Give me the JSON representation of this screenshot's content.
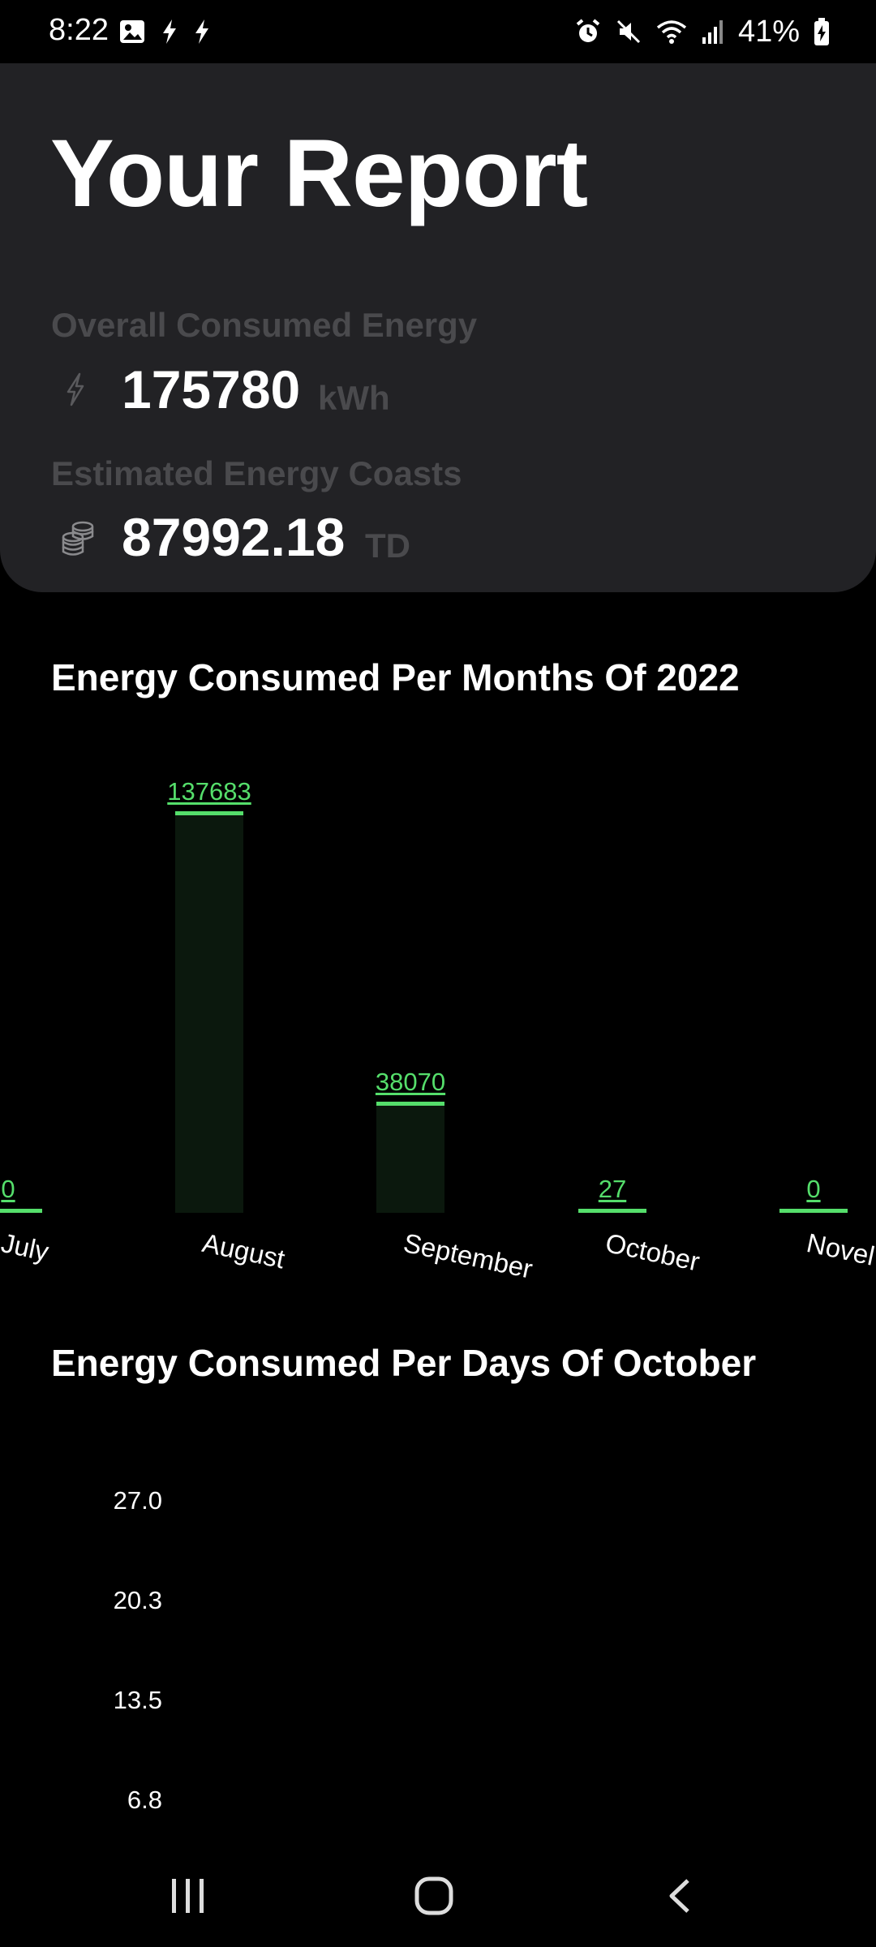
{
  "status_bar": {
    "time": "8:22",
    "battery": "41%"
  },
  "report": {
    "title": "Your Report",
    "energy": {
      "label": "Overall Consumed  Energy",
      "value": "175780",
      "unit": "kWh",
      "icon": "lightning-icon"
    },
    "cost": {
      "label": "Estimated Energy Coasts",
      "value": "87992.18",
      "unit": "TD",
      "icon": "coins-icon"
    }
  },
  "chart_data": [
    {
      "type": "bar",
      "title": "Energy Consumed Per Months Of 2022",
      "categories": [
        "July",
        "August",
        "September",
        "October",
        "Novel"
      ],
      "values": [
        0,
        137683,
        38070,
        27,
        0
      ],
      "ylim": [
        0,
        137683
      ],
      "grid": false,
      "color": "#55de6b"
    },
    {
      "type": "bar",
      "title": "Energy Consumed Per Days Of October",
      "y_ticks": [
        "27.0",
        "20.3",
        "13.5",
        "6.8"
      ],
      "ylim": [
        0,
        27.0
      ]
    }
  ],
  "colors": {
    "background": "#000000",
    "card": "#222225",
    "accent": "#55de6b",
    "muted": "#4a4a4d"
  }
}
